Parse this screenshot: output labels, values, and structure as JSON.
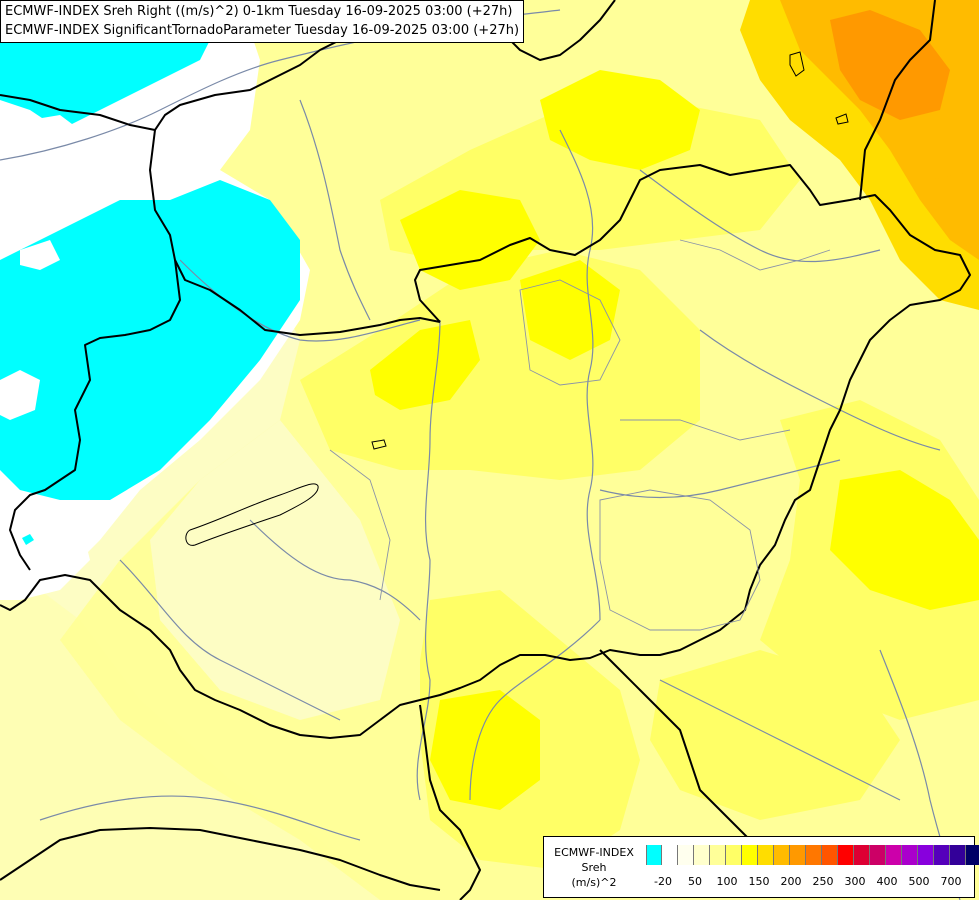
{
  "title": {
    "line1": "ECMWF-INDEX Sreh Right ((m/s)^2) 0-1km Tuesday 16-09-2025 03:00 (+27h)",
    "line2": "ECMWF-INDEX SignificantTornadoParameter Tuesday 16-09-2025 03:00 (+27h)"
  },
  "legend": {
    "line1": "ECMWF-INDEX",
    "line2": "Sreh",
    "line3": "(m/s)^2",
    "colors": [
      "#00ffff",
      "#ffffff",
      "#ffffee",
      "#ffffcc",
      "#ffff99",
      "#ffff66",
      "#ffff00",
      "#ffdd00",
      "#ffbb00",
      "#ff9900",
      "#ff7700",
      "#ff5500",
      "#ff0000",
      "#dd0033",
      "#cc0066",
      "#cc00aa",
      "#aa00cc",
      "#8800dd",
      "#5500bb",
      "#330099",
      "#000066"
    ],
    "ticks": [
      "-20",
      "50",
      "100",
      "150",
      "200",
      "250",
      "300",
      "400",
      "500",
      "700"
    ]
  },
  "colors": {
    "cyan": "#00ffff",
    "white": "#ffffff",
    "pale": "#fdfdc4",
    "light_yellow": "#ffff99",
    "yellow": "#ffff66",
    "bright_yellow": "#ffff00",
    "gold": "#ffdd00",
    "orange": "#ffbb00",
    "dark_orange": "#ff9900"
  }
}
